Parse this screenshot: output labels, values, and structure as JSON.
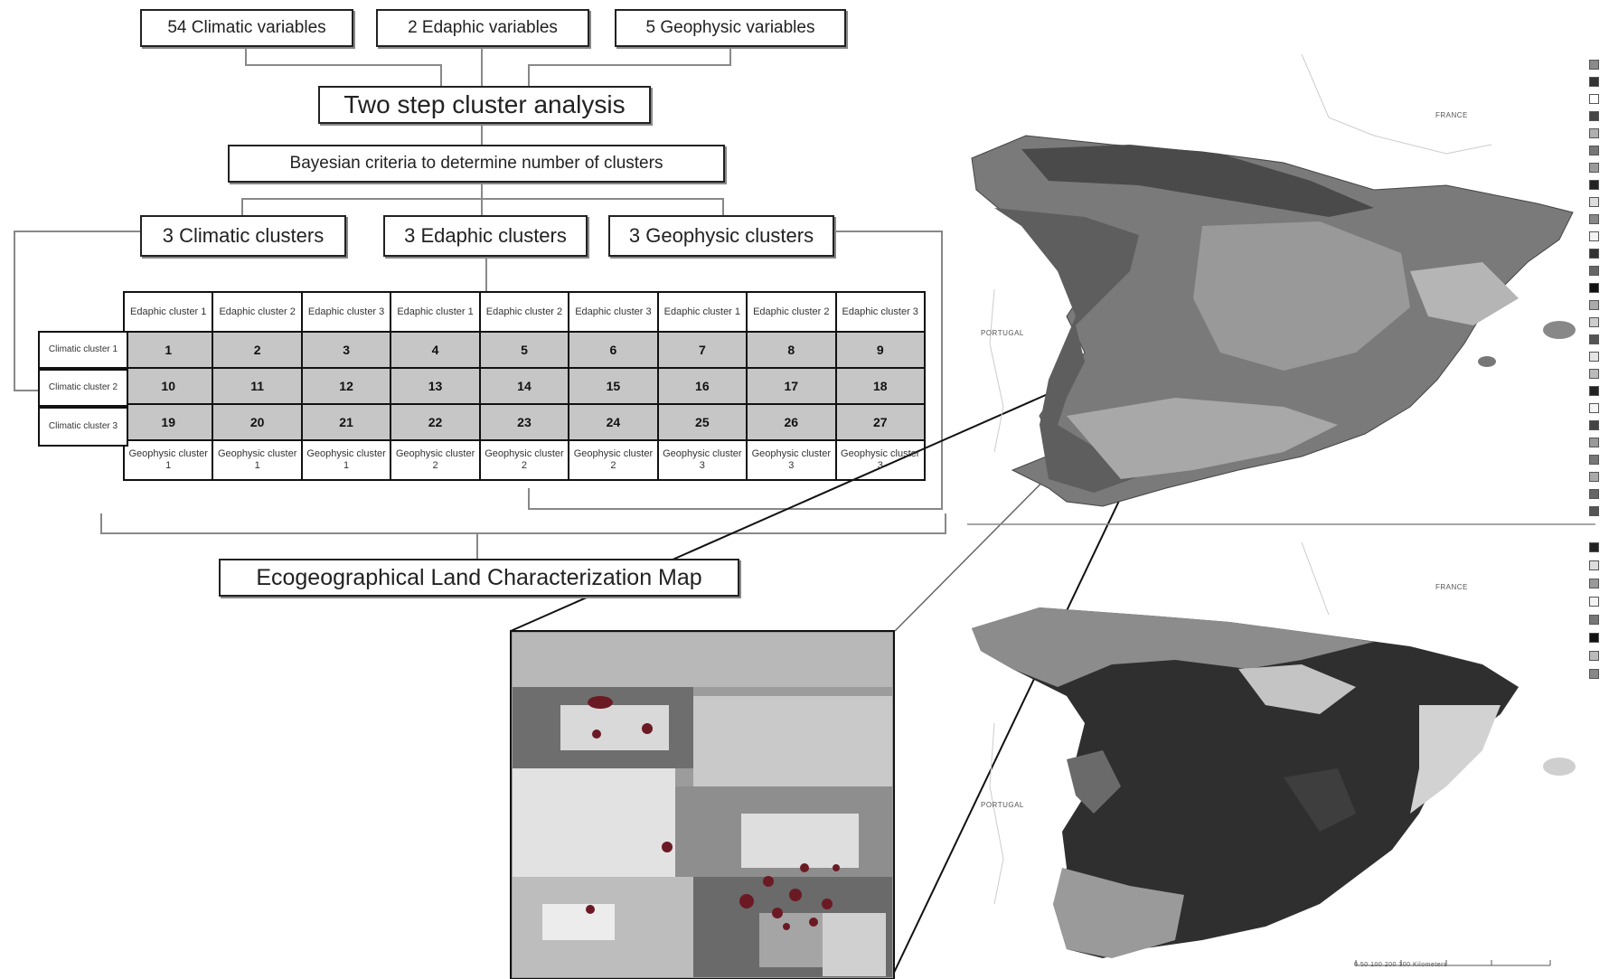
{
  "flow": {
    "input_climatic": "54 Climatic variables",
    "input_edaphic": "2 Edaphic variables",
    "input_geophysic": "5 Geophysic variables",
    "analysis": "Two step cluster analysis",
    "criteria": "Bayesian criteria to determine number of clusters",
    "clusters_climatic": "3 Climatic clusters",
    "clusters_edaphic": "3 Edaphic clusters",
    "clusters_geophysic": "3 Geophysic clusters",
    "output": "Ecogeographical Land Characterization Map"
  },
  "matrix": {
    "edaphic_headers": [
      "Edaphic cluster 1",
      "Edaphic cluster 2",
      "Edaphic cluster 3",
      "Edaphic cluster 1",
      "Edaphic cluster 2",
      "Edaphic cluster 3",
      "Edaphic cluster 1",
      "Edaphic cluster 2",
      "Edaphic cluster 3"
    ],
    "climatic_rows": [
      "Climatic cluster 1",
      "Climatic cluster 2",
      "Climatic cluster 3"
    ],
    "values": [
      [
        "1",
        "2",
        "3",
        "4",
        "5",
        "6",
        "7",
        "8",
        "9"
      ],
      [
        "10",
        "11",
        "12",
        "13",
        "14",
        "15",
        "16",
        "17",
        "18"
      ],
      [
        "19",
        "20",
        "21",
        "22",
        "23",
        "24",
        "25",
        "26",
        "27"
      ]
    ],
    "geophysic_footers": [
      "Geophysic cluster 1",
      "Geophysic cluster 1",
      "Geophysic cluster 1",
      "Geophysic cluster 2",
      "Geophysic cluster 2",
      "Geophysic cluster 2",
      "Geophysic cluster 3",
      "Geophysic cluster 3",
      "Geophysic cluster 3"
    ]
  },
  "maps": {
    "top_france": "FRANCE",
    "top_portugal": "PORTUGAL",
    "bottom_france": "FRANCE",
    "bottom_portugal": "PORTUGAL",
    "scale_bar": "0 50 100    200    300 Kilometers"
  }
}
